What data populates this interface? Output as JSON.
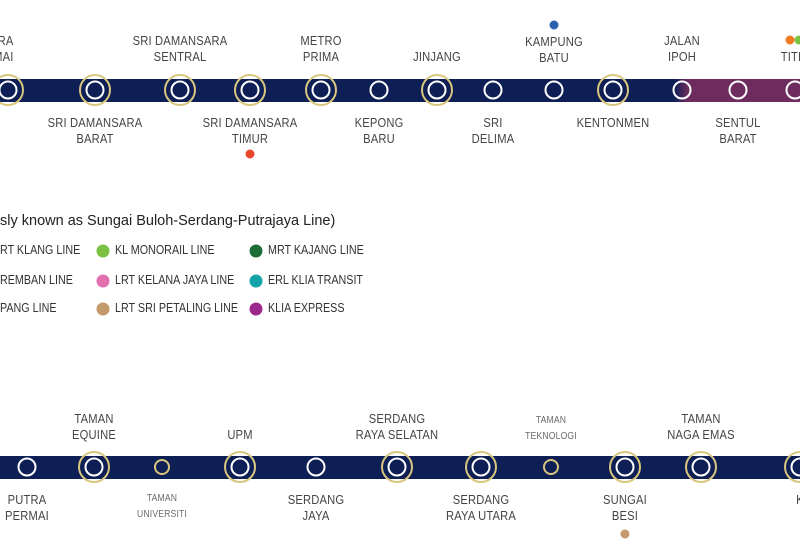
{
  "colors": {
    "line_navy": "#0d1f55",
    "line_purple": "#6e2c5e",
    "interchange_ring": "#d9c77f"
  },
  "top_line": {
    "stations": [
      {
        "above": [
          "ANSARA",
          "AMAI"
        ],
        "interchange": true
      },
      {
        "below": [
          "SRI DAMANSARA",
          "BARAT"
        ],
        "interchange": true
      },
      {
        "above": [
          "SRI DAMANSARA",
          "SENTRAL"
        ],
        "interchange": true
      },
      {
        "below": [
          "SRI DAMANSARA",
          "TIMUR"
        ],
        "interchange": true,
        "dot": "#e8472c"
      },
      {
        "above": [
          "METRO",
          "PRIMA"
        ],
        "interchange": true
      },
      {
        "below": [
          "KEPONG",
          "BARU"
        ],
        "interchange": false
      },
      {
        "above": [
          "JINJANG"
        ],
        "interchange": true
      },
      {
        "below": [
          "SRI",
          "DELIMA"
        ],
        "interchange": false
      },
      {
        "above": [
          "KAMPUNG",
          "BATU"
        ],
        "interchange": false,
        "dot": "#2a62b0"
      },
      {
        "below": [
          "KENTONMEN"
        ],
        "interchange": true
      },
      {
        "above": [
          "JALAN",
          "IPOH"
        ],
        "interchange": false
      },
      {
        "below": [
          "SENTUL",
          "BARAT"
        ],
        "interchange": false
      },
      {
        "above": [
          "TITIWA"
        ],
        "interchange": false,
        "dots": [
          "#ef7b23",
          "#7cc242"
        ]
      }
    ]
  },
  "legend": {
    "title": "sly known as Sungai Buloh-Serdang-Putrajaya Line)",
    "items": [
      {
        "label": "RT KLANG LINE",
        "color": null
      },
      {
        "label": "REMBAN LINE",
        "color": null
      },
      {
        "label": "PANG LINE",
        "color": null
      },
      {
        "label": "KL MONORAIL LINE",
        "color": "#7cc242"
      },
      {
        "label": "LRT KELANA JAYA LINE",
        "color": "#e170b0"
      },
      {
        "label": "LRT SRI PETALING LINE",
        "color": "#c49a6c"
      },
      {
        "label": "MRT KAJANG LINE",
        "color": "#1f6e35"
      },
      {
        "label": "ERL KLIA TRANSIT",
        "color": "#13a3a8"
      },
      {
        "label": "KLIA EXPRESS",
        "color": "#9c2a8c"
      }
    ]
  },
  "bottom_line": {
    "stations": [
      {
        "below": [
          "PUTRA",
          "PERMAI"
        ],
        "type": "normal"
      },
      {
        "above": [
          "TAMAN",
          "EQUINE"
        ],
        "type": "interchange"
      },
      {
        "below": [
          "TAMAN",
          "UNIVERSITI"
        ],
        "type": "future"
      },
      {
        "above": [
          "UPM"
        ],
        "type": "interchange"
      },
      {
        "below": [
          "SERDANG",
          "JAYA"
        ],
        "type": "normal"
      },
      {
        "above": [
          "SERDANG",
          "RAYA SELATAN"
        ],
        "type": "interchange"
      },
      {
        "below": [
          "SERDANG",
          "RAYA UTARA"
        ],
        "type": "interchange"
      },
      {
        "above": [
          "TAMAN",
          "TEKNOLOGI"
        ],
        "type": "future"
      },
      {
        "below": [
          "SUNGAI",
          "BESI"
        ],
        "type": "interchange",
        "dot": "#c49a6c"
      },
      {
        "above": [
          "TAMAN",
          "NAGA EMAS"
        ],
        "type": "interchange"
      },
      {
        "below": [
          "K"
        ],
        "type": "interchange"
      }
    ]
  }
}
